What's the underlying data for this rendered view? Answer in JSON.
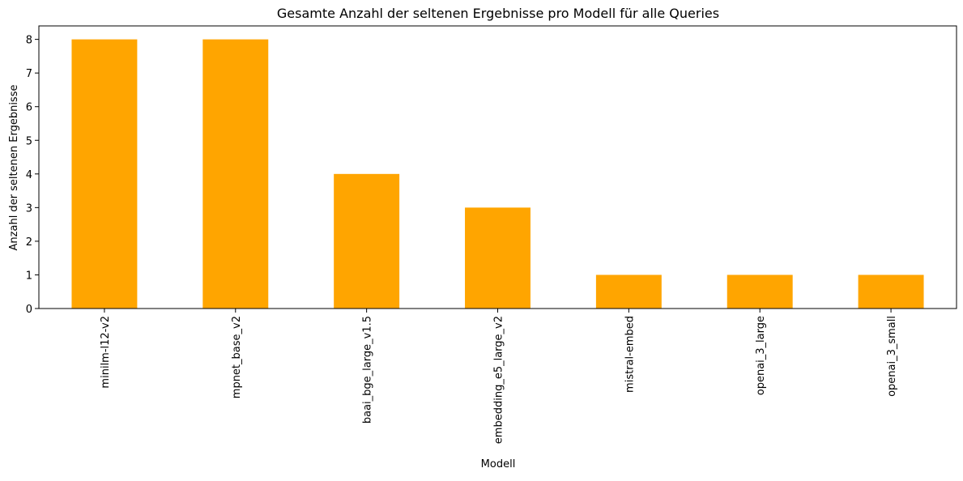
{
  "chart_data": {
    "type": "bar",
    "title": "Gesamte Anzahl der seltenen Ergebnisse pro Modell für alle Queries",
    "xlabel": "Modell",
    "ylabel": "Anzahl der seltenen Ergebnisse",
    "categories": [
      "minilm-l12-v2",
      "mpnet_base_v2",
      "baai_bge_large_v1.5",
      "embedding_e5_large_v2",
      "mistral-embed",
      "openai_3_large",
      "openai_3_small"
    ],
    "values": [
      8,
      8,
      4,
      3,
      1,
      1,
      1
    ],
    "ylim": [
      0,
      8.4
    ],
    "yticks": [
      0,
      1,
      2,
      3,
      4,
      5,
      6,
      7,
      8
    ],
    "grid": false,
    "legend": "none",
    "bar_color": "#FFA500",
    "axis_color": "#000000",
    "x_tick_rotation": "vertical"
  }
}
